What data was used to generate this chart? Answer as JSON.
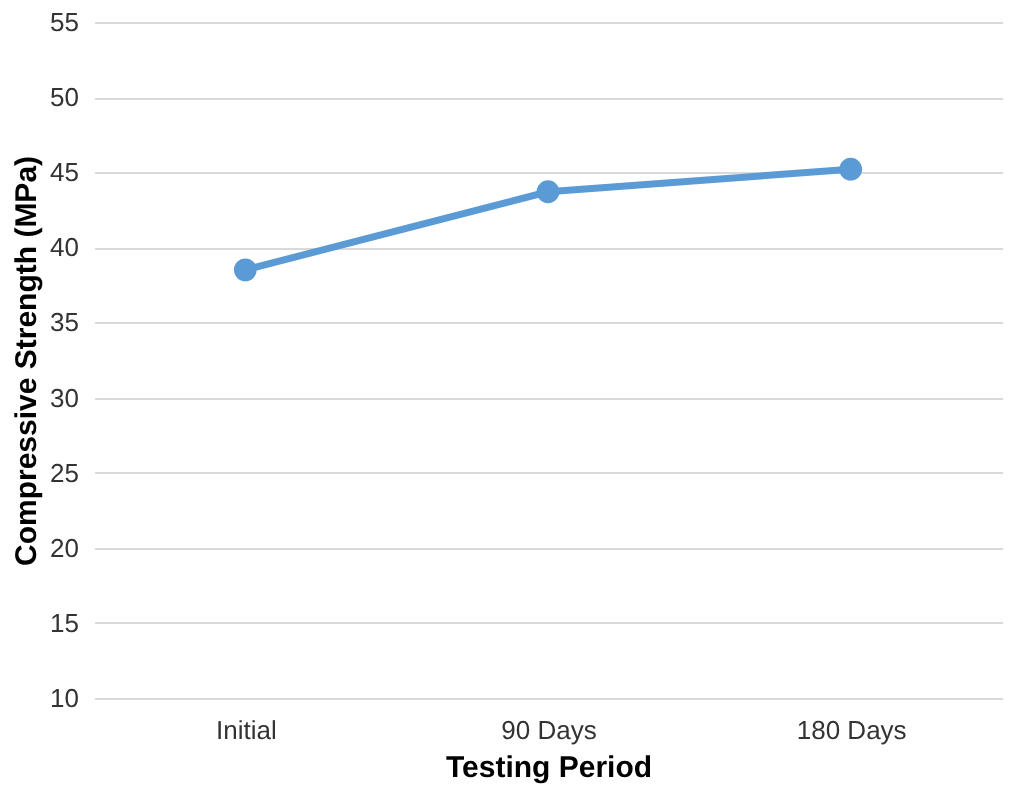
{
  "chart_data": {
    "type": "line",
    "xlabel": "Testing Period",
    "ylabel": "Compressive Strength (MPa)",
    "categories": [
      "Initial",
      "90 Days",
      "180 Days"
    ],
    "series": [
      {
        "color": "#5b9bd5",
        "values": [
          38.5,
          43.7,
          45.2
        ]
      }
    ],
    "ylim": [
      10,
      55
    ],
    "yticks": [
      10,
      15,
      20,
      25,
      30,
      35,
      40,
      45,
      50,
      55
    ],
    "grid": "y",
    "marker": "circle",
    "line_style": "solid",
    "legend": false
  }
}
